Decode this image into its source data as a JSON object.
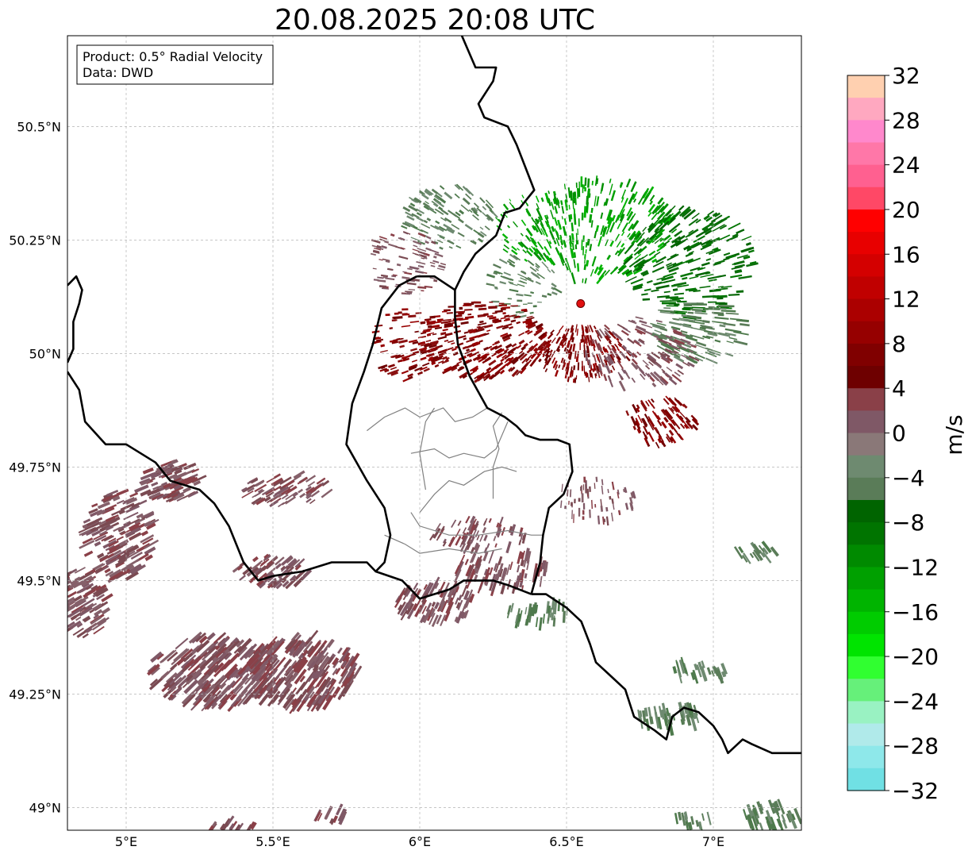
{
  "title": "20.08.2025 20:08 UTC",
  "info_box": {
    "line1": "Product: 0.5° Radial Velocity",
    "line2": "Data: DWD"
  },
  "map": {
    "lon_range": [
      4.8,
      7.3
    ],
    "lat_range": [
      48.95,
      50.7
    ],
    "x_ticks": [
      {
        "value": 5.0,
        "label": "5°E"
      },
      {
        "value": 5.5,
        "label": "5.5°E"
      },
      {
        "value": 6.0,
        "label": "6°E"
      },
      {
        "value": 6.5,
        "label": "6.5°E"
      },
      {
        "value": 7.0,
        "label": "7°E"
      }
    ],
    "y_ticks": [
      {
        "value": 50.5,
        "label": "50.5°N"
      },
      {
        "value": 50.25,
        "label": "50.25°N"
      },
      {
        "value": 50.0,
        "label": "50°N"
      },
      {
        "value": 49.75,
        "label": "49.75°N"
      },
      {
        "value": 49.5,
        "label": "49.5°N"
      },
      {
        "value": 49.25,
        "label": "49.25°N"
      },
      {
        "value": 49.0,
        "label": "49°N"
      }
    ],
    "radar_site": {
      "lon": 6.548,
      "lat": 50.11,
      "color": "#e01010"
    },
    "grid": true
  },
  "colorbar": {
    "label": "m/s",
    "min": -32,
    "max": 32,
    "ticks": [
      {
        "value": 32,
        "label": "32"
      },
      {
        "value": 28,
        "label": "28"
      },
      {
        "value": 24,
        "label": "24"
      },
      {
        "value": 20,
        "label": "20"
      },
      {
        "value": 16,
        "label": "16"
      },
      {
        "value": 12,
        "label": "12"
      },
      {
        "value": 8,
        "label": "8"
      },
      {
        "value": 4,
        "label": "4"
      },
      {
        "value": 0,
        "label": "0"
      },
      {
        "value": -4,
        "label": "−4"
      },
      {
        "value": -8,
        "label": "−8"
      },
      {
        "value": -12,
        "label": "−12"
      },
      {
        "value": -16,
        "label": "−16"
      },
      {
        "value": -20,
        "label": "−20"
      },
      {
        "value": -24,
        "label": "−24"
      },
      {
        "value": -28,
        "label": "−28"
      },
      {
        "value": -32,
        "label": "−32"
      }
    ],
    "colors_top_to_bottom": [
      "#ffd0b0",
      "#ffa8c0",
      "#ff88cc",
      "#ff77a8",
      "#ff6090",
      "#ff4866",
      "#ff0000",
      "#e80000",
      "#d40000",
      "#c00000",
      "#ab0000",
      "#960000",
      "#800000",
      "#6e0000",
      "#8a4048",
      "#7f5866",
      "#8a7878",
      "#6e8a70",
      "#5a7c58",
      "#006400",
      "#007400",
      "#008a00",
      "#00a000",
      "#00b400",
      "#00cc00",
      "#00e400",
      "#30ff30",
      "#66f07a",
      "#99f2c2",
      "#b0eaea",
      "#8ee8ea",
      "#70e0e4"
    ]
  },
  "borders": {
    "country": [
      [
        [
          6.13,
          50.72
        ],
        [
          6.15,
          50.69
        ],
        [
          6.17,
          50.66
        ],
        [
          6.19,
          50.63
        ],
        [
          6.26,
          50.63
        ],
        [
          6.25,
          50.6
        ],
        [
          6.2,
          50.55
        ],
        [
          6.22,
          50.52
        ],
        [
          6.3,
          50.5
        ],
        [
          6.33,
          50.46
        ],
        [
          6.36,
          50.41
        ],
        [
          6.39,
          50.36
        ],
        [
          6.34,
          50.32
        ],
        [
          6.29,
          50.31
        ],
        [
          6.26,
          50.26
        ],
        [
          6.19,
          50.22
        ],
        [
          6.15,
          50.18
        ],
        [
          6.12,
          50.14
        ],
        [
          6.12,
          50.08
        ],
        [
          6.13,
          50.02
        ],
        [
          6.17,
          49.95
        ],
        [
          6.23,
          49.88
        ],
        [
          6.29,
          49.86
        ],
        [
          6.33,
          49.84
        ],
        [
          6.36,
          49.82
        ],
        [
          6.41,
          49.81
        ],
        [
          6.47,
          49.81
        ],
        [
          6.51,
          49.8
        ],
        [
          6.52,
          49.74
        ],
        [
          6.49,
          49.69
        ],
        [
          6.44,
          49.66
        ],
        [
          6.42,
          49.6
        ],
        [
          6.41,
          49.54
        ],
        [
          6.38,
          49.47
        ]
      ],
      [
        [
          6.38,
          49.47
        ],
        [
          6.43,
          49.47
        ],
        [
          6.5,
          49.44
        ],
        [
          6.55,
          49.41
        ],
        [
          6.58,
          49.36
        ],
        [
          6.6,
          49.32
        ],
        [
          6.65,
          49.29
        ],
        [
          6.7,
          49.26
        ],
        [
          6.73,
          49.2
        ],
        [
          6.8,
          49.17
        ],
        [
          6.84,
          49.15
        ],
        [
          6.86,
          49.2
        ],
        [
          6.9,
          49.22
        ],
        [
          6.95,
          49.21
        ],
        [
          7.0,
          49.18
        ],
        [
          7.03,
          49.15
        ],
        [
          7.05,
          49.12
        ],
        [
          7.1,
          49.15
        ],
        [
          7.13,
          49.14
        ],
        [
          7.2,
          49.12
        ],
        [
          7.3,
          49.12
        ]
      ],
      [
        [
          6.38,
          49.47
        ],
        [
          6.3,
          49.49
        ],
        [
          6.25,
          49.5
        ],
        [
          6.15,
          49.5
        ],
        [
          6.1,
          49.48
        ],
        [
          6.0,
          49.46
        ],
        [
          5.94,
          49.5
        ],
        [
          5.85,
          49.52
        ],
        [
          5.82,
          49.54
        ],
        [
          5.7,
          49.54
        ],
        [
          5.6,
          49.52
        ],
        [
          5.5,
          49.51
        ],
        [
          5.45,
          49.5
        ],
        [
          5.4,
          49.54
        ],
        [
          5.35,
          49.62
        ],
        [
          5.3,
          49.67
        ],
        [
          5.25,
          49.7
        ],
        [
          5.15,
          49.72
        ],
        [
          5.1,
          49.76
        ],
        [
          5.0,
          49.8
        ],
        [
          4.93,
          49.8
        ],
        [
          4.86,
          49.85
        ],
        [
          4.84,
          49.92
        ],
        [
          4.8,
          49.96
        ]
      ],
      [
        [
          5.99,
          50.17
        ],
        [
          5.93,
          50.15
        ],
        [
          5.87,
          50.1
        ],
        [
          5.84,
          50.02
        ],
        [
          5.81,
          49.96
        ],
        [
          5.77,
          49.89
        ],
        [
          5.75,
          49.8
        ],
        [
          5.82,
          49.72
        ],
        [
          5.88,
          49.66
        ],
        [
          5.9,
          49.6
        ],
        [
          5.88,
          49.54
        ],
        [
          5.85,
          49.52
        ]
      ],
      [
        [
          5.99,
          50.17
        ],
        [
          6.05,
          50.17
        ],
        [
          6.12,
          50.14
        ]
      ],
      [
        [
          4.8,
          50.15
        ],
        [
          4.83,
          50.17
        ],
        [
          4.85,
          50.14
        ],
        [
          4.84,
          50.11
        ],
        [
          4.82,
          50.07
        ],
        [
          4.82,
          50.01
        ],
        [
          4.8,
          49.98
        ]
      ]
    ],
    "regional": [
      [
        [
          5.82,
          49.83
        ],
        [
          5.88,
          49.86
        ],
        [
          5.95,
          49.88
        ],
        [
          6.0,
          49.86
        ],
        [
          6.08,
          49.88
        ],
        [
          6.12,
          49.85
        ],
        [
          6.18,
          49.86
        ],
        [
          6.23,
          49.88
        ]
      ],
      [
        [
          5.97,
          49.78
        ],
        [
          6.05,
          49.79
        ],
        [
          6.1,
          49.77
        ],
        [
          6.15,
          49.78
        ],
        [
          6.22,
          49.77
        ],
        [
          6.26,
          49.79
        ],
        [
          6.3,
          49.85
        ]
      ],
      [
        [
          6.0,
          49.65
        ],
        [
          6.05,
          49.69
        ],
        [
          6.1,
          49.72
        ],
        [
          6.15,
          49.71
        ],
        [
          6.22,
          49.74
        ],
        [
          6.28,
          49.75
        ],
        [
          6.33,
          49.74
        ]
      ],
      [
        [
          5.97,
          49.65
        ],
        [
          6.0,
          49.62
        ],
        [
          6.1,
          49.6
        ],
        [
          6.2,
          49.6
        ],
        [
          6.3,
          49.61
        ],
        [
          6.38,
          49.6
        ],
        [
          6.42,
          49.6
        ]
      ],
      [
        [
          5.88,
          49.6
        ],
        [
          5.95,
          49.58
        ],
        [
          6.0,
          49.56
        ],
        [
          6.1,
          49.57
        ],
        [
          6.2,
          49.56
        ],
        [
          6.28,
          49.57
        ]
      ],
      [
        [
          6.25,
          49.68
        ],
        [
          6.25,
          49.75
        ],
        [
          6.27,
          49.79
        ],
        [
          6.25,
          49.84
        ],
        [
          6.28,
          49.87
        ]
      ],
      [
        [
          6.02,
          49.7
        ],
        [
          6.0,
          49.78
        ],
        [
          6.02,
          49.85
        ],
        [
          6.05,
          49.88
        ]
      ]
    ]
  }
}
